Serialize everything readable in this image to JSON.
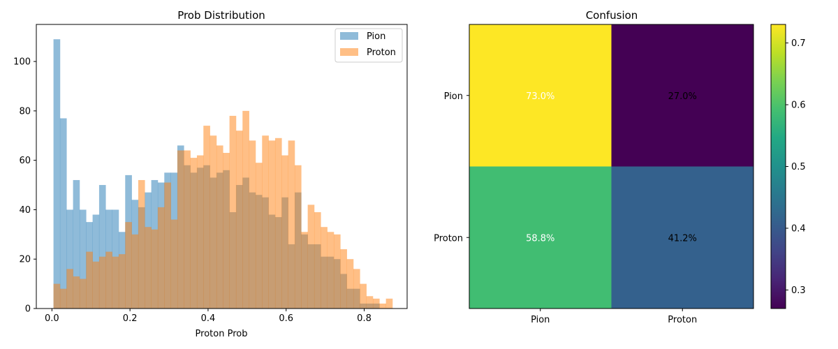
{
  "chart_data": [
    {
      "type": "histogram",
      "title": "Prob Distribution",
      "xlabel": "Proton Prob",
      "ylabel": "",
      "xlim": [
        -0.04,
        0.91
      ],
      "ylim": [
        0,
        115
      ],
      "xticks": [
        0.0,
        0.2,
        0.4,
        0.6,
        0.8
      ],
      "xtick_labels": [
        "0.0",
        "0.2",
        "0.4",
        "0.6",
        "0.8"
      ],
      "yticks": [
        0,
        20,
        40,
        60,
        80,
        100
      ],
      "ytick_labels": [
        "0",
        "20",
        "40",
        "60",
        "80",
        "100"
      ],
      "grid": false,
      "legend": "top-right",
      "series": [
        {
          "name": "Pion",
          "color": "#1f77b4",
          "alpha": 0.5,
          "bin_start": 0.004,
          "bin_width": 0.0167,
          "values": [
            109,
            77,
            40,
            52,
            40,
            35,
            38,
            50,
            40,
            40,
            31,
            54,
            44,
            41,
            47,
            52,
            51,
            55,
            55,
            66,
            58,
            55,
            57,
            58,
            53,
            55,
            56,
            39,
            50,
            53,
            47,
            46,
            45,
            38,
            37,
            45,
            26,
            47,
            30,
            26,
            26,
            21,
            21,
            20,
            14,
            8,
            8,
            2,
            2,
            2
          ]
        },
        {
          "name": "Proton",
          "color": "#ff7f0e",
          "alpha": 0.5,
          "bin_start": 0.004,
          "bin_width": 0.0167,
          "values": [
            10,
            8,
            16,
            13,
            12,
            23,
            19,
            21,
            23,
            21,
            22,
            35,
            30,
            52,
            33,
            32,
            41,
            51,
            36,
            64,
            64,
            61,
            62,
            74,
            70,
            66,
            63,
            78,
            72,
            80,
            68,
            59,
            70,
            68,
            69,
            62,
            68,
            58,
            31,
            42,
            39,
            33,
            31,
            30,
            24,
            20,
            16,
            10,
            5,
            4,
            2,
            4
          ]
        }
      ]
    },
    {
      "type": "heatmap",
      "title": "Confusion",
      "rows": [
        "Pion",
        "Proton"
      ],
      "cols": [
        "Pion",
        "Proton"
      ],
      "values": [
        [
          0.73,
          0.27
        ],
        [
          0.588,
          0.412
        ]
      ],
      "cell_labels": [
        [
          "73.0%",
          "27.0%"
        ],
        [
          "58.8%",
          "41.2%"
        ]
      ],
      "colormap": "viridis",
      "colorbar": {
        "min": 0.27,
        "max": 0.73,
        "ticks": [
          0.3,
          0.4,
          0.5,
          0.6,
          0.7
        ],
        "tick_labels": [
          "0.3",
          "0.4",
          "0.5",
          "0.6",
          "0.7"
        ]
      }
    }
  ]
}
